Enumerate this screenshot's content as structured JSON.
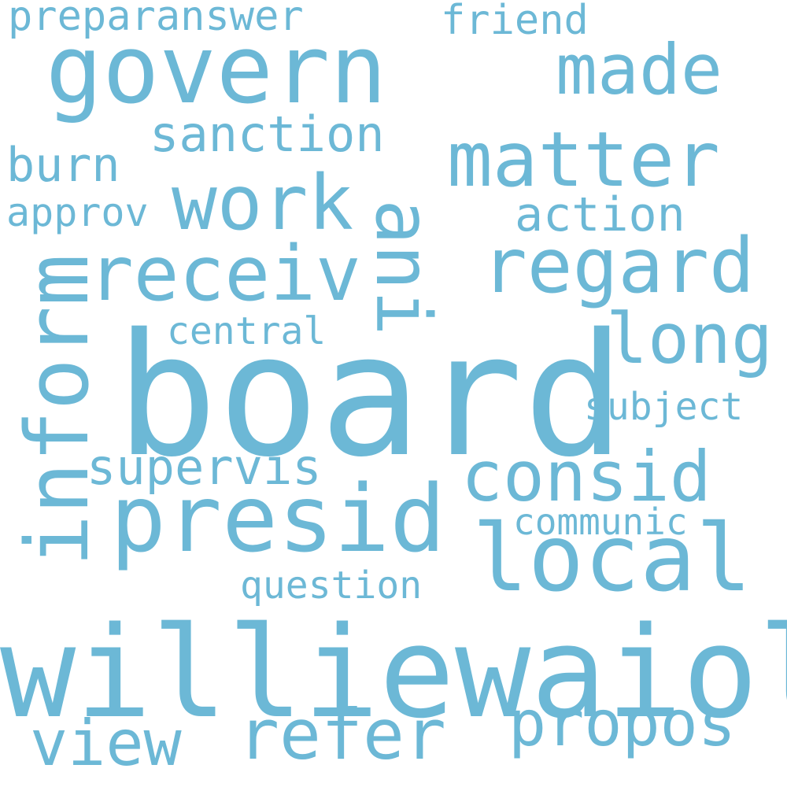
{
  "color": "#6cb8d6",
  "words": {
    "board": "board",
    "williewaiola": "williewaiola",
    "govern": "govern",
    "presid": "presid",
    "local": "local",
    "inform": "inform",
    "matter": "matter",
    "receiv": "receiv",
    "work": "work",
    "regard": "regard",
    "ani": "ani",
    "made": "made",
    "long": "long",
    "consid": "consid",
    "refer": "refer",
    "view": "view",
    "propos": "propos",
    "sanction": "sanction",
    "supervis": "supervis",
    "action": "action",
    "burn": "burn",
    "preparanswer": "preparanswer",
    "friend": "friend",
    "approv": "approv",
    "central": "central",
    "subject": "subject",
    "communic": "communic",
    "question": "question"
  }
}
